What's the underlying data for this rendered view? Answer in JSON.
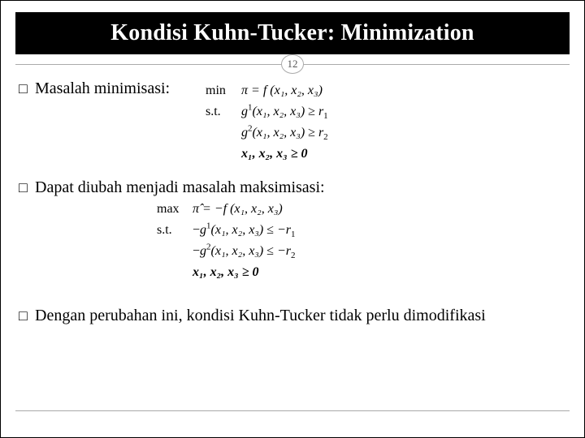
{
  "title": "Kondisi Kuhn-Tucker: Minimization",
  "page_number": "12",
  "bullets": {
    "b1": "Masalah minimisasi:",
    "b2": "Dapat diubah menjadi masalah maksimisasi:",
    "b3": "Dengan perubahan ini, kondisi Kuhn-Tucker tidak perlu dimodifikasi"
  },
  "math": {
    "min": {
      "label_op": "min",
      "label_st": "s.t.",
      "obj_lhs": "π = ",
      "obj_f": "f",
      "obj_args": " (x₁, x₂, x₃)",
      "g1_f": "g",
      "g1_sup": "1",
      "g1_args": "(x₁, x₂, x₃) ≥ ",
      "g1_r": "r",
      "g1_rsub": "1",
      "g2_f": "g",
      "g2_sup": "2",
      "g2_args": "(x₁, x₂, x₃) ≥ ",
      "g2_r": "r",
      "g2_rsub": "2",
      "nn": "x₁, x₂, x₃ ≥ 0"
    },
    "max": {
      "label_op": "max",
      "label_st": "s.t.",
      "obj_lhs": "π̂ = −",
      "obj_f": "f",
      "obj_args": " (x₁, x₂, x₃)",
      "g1_pre": "−",
      "g1_f": "g",
      "g1_sup": "1",
      "g1_args": "(x₁, x₂, x₃) ≤ −",
      "g1_r": "r",
      "g1_rsub": "1",
      "g2_pre": "−",
      "g2_f": "g",
      "g2_sup": "2",
      "g2_args": "(x₁, x₂, x₃) ≤ −",
      "g2_r": "r",
      "g2_rsub": "2",
      "nn": "x₁, x₂, x₃ ≥ 0"
    }
  },
  "colors": {
    "title_bg": "#000000",
    "title_fg": "#ffffff",
    "line": "#aaaaaa",
    "text": "#000000"
  },
  "glyphs": {
    "square": "□"
  }
}
